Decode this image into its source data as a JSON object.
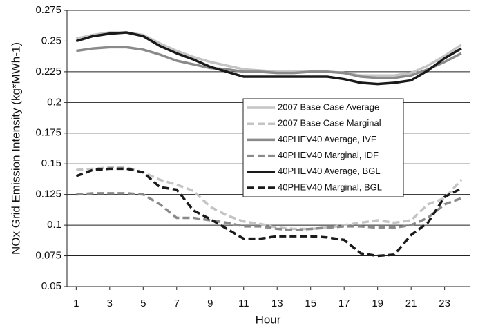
{
  "chart_data": {
    "type": "line",
    "x_label": "Hour",
    "y_label": "NOx Grid Emission Intensity (kg*MWh-1)",
    "x": [
      1,
      2,
      3,
      4,
      5,
      6,
      7,
      8,
      9,
      10,
      11,
      12,
      13,
      14,
      15,
      16,
      17,
      18,
      19,
      20,
      21,
      22,
      23,
      24
    ],
    "xlim": [
      0.45,
      24.5
    ],
    "xticks": [
      1,
      3,
      5,
      7,
      9,
      11,
      13,
      15,
      17,
      19,
      21,
      23
    ],
    "ylim": [
      0.05,
      0.275
    ],
    "yticks": [
      0.05,
      0.075,
      0.1,
      0.125,
      0.15,
      0.175,
      0.2,
      0.225,
      0.25,
      0.275
    ],
    "grid": true,
    "legend_position": "center-right",
    "series": [
      {
        "name": "2007 Base Case Average",
        "color": "#c4c4c4",
        "dashed": false,
        "values": [
          0.252,
          0.255,
          0.257,
          0.257,
          0.255,
          0.248,
          0.242,
          0.237,
          0.233,
          0.23,
          0.227,
          0.226,
          0.225,
          0.225,
          0.225,
          0.225,
          0.224,
          0.222,
          0.222,
          0.222,
          0.224,
          0.23,
          0.238,
          0.247
        ]
      },
      {
        "name": "2007 Base Case Marginal",
        "color": "#c4c4c4",
        "dashed": true,
        "values": [
          0.145,
          0.146,
          0.147,
          0.147,
          0.143,
          0.137,
          0.133,
          0.128,
          0.115,
          0.108,
          0.103,
          0.101,
          0.098,
          0.097,
          0.097,
          0.098,
          0.1,
          0.102,
          0.104,
          0.102,
          0.104,
          0.117,
          0.122,
          0.137
        ]
      },
      {
        "name": "40PHEV40 Average, IVF",
        "color": "#8a8a8a",
        "dashed": false,
        "values": [
          0.242,
          0.244,
          0.245,
          0.245,
          0.243,
          0.239,
          0.234,
          0.231,
          0.228,
          0.227,
          0.225,
          0.225,
          0.224,
          0.224,
          0.225,
          0.225,
          0.224,
          0.221,
          0.22,
          0.22,
          0.222,
          0.227,
          0.233,
          0.24
        ]
      },
      {
        "name": "40PHEV40 Marginal, IDF",
        "color": "#8a8a8a",
        "dashed": true,
        "values": [
          0.125,
          0.126,
          0.126,
          0.126,
          0.125,
          0.117,
          0.106,
          0.106,
          0.104,
          0.102,
          0.099,
          0.099,
          0.097,
          0.096,
          0.097,
          0.098,
          0.099,
          0.099,
          0.098,
          0.098,
          0.1,
          0.106,
          0.117,
          0.122
        ]
      },
      {
        "name": "40PHEV40 Average, BGL",
        "color": "#1a1a1a",
        "dashed": false,
        "values": [
          0.25,
          0.254,
          0.256,
          0.257,
          0.254,
          0.246,
          0.24,
          0.235,
          0.229,
          0.225,
          0.221,
          0.221,
          0.221,
          0.221,
          0.221,
          0.221,
          0.219,
          0.216,
          0.215,
          0.216,
          0.218,
          0.226,
          0.236,
          0.244
        ]
      },
      {
        "name": "40PHEV40 Marginal, BGL",
        "color": "#1a1a1a",
        "dashed": true,
        "values": [
          0.14,
          0.145,
          0.146,
          0.146,
          0.143,
          0.131,
          0.129,
          0.112,
          0.105,
          0.097,
          0.089,
          0.089,
          0.091,
          0.091,
          0.091,
          0.09,
          0.088,
          0.077,
          0.075,
          0.076,
          0.092,
          0.102,
          0.123,
          0.13
        ]
      }
    ]
  }
}
